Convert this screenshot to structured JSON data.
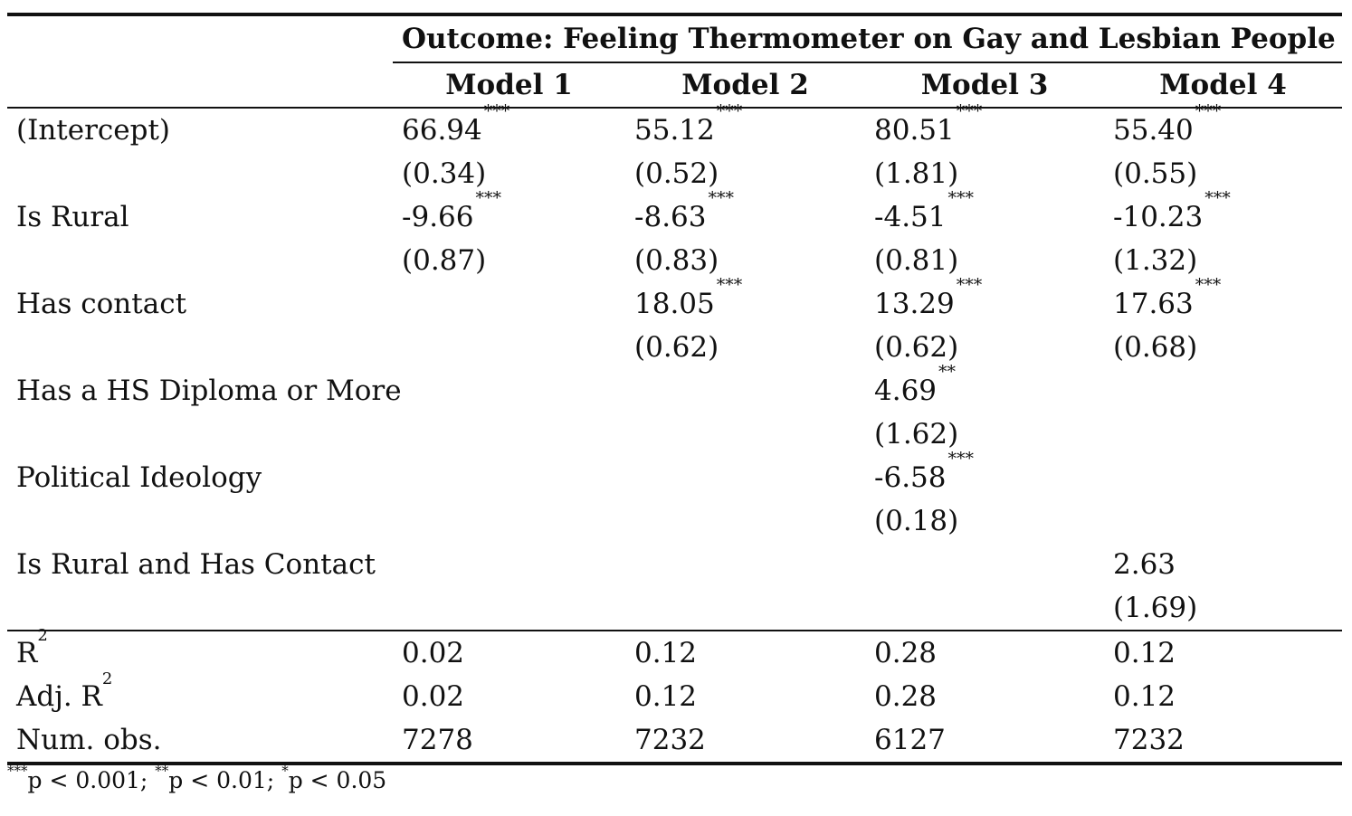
{
  "table": {
    "outcome_header": "Outcome: Feeling Thermometer on Gay and Lesbian People",
    "models": [
      "Model 1",
      "Model 2",
      "Model 3",
      "Model 4"
    ],
    "rows": [
      {
        "label": "(Intercept)",
        "coef": [
          {
            "v": "66.94",
            "s": "***"
          },
          {
            "v": "55.12",
            "s": "***"
          },
          {
            "v": "80.51",
            "s": "***"
          },
          {
            "v": "55.40",
            "s": "***"
          }
        ],
        "se": [
          "(0.34)",
          "(0.52)",
          "(1.81)",
          "(0.55)"
        ]
      },
      {
        "label": "Is Rural",
        "coef": [
          {
            "v": "-9.66",
            "s": "***"
          },
          {
            "v": "-8.63",
            "s": "***"
          },
          {
            "v": "-4.51",
            "s": "***"
          },
          {
            "v": "-10.23",
            "s": "***"
          }
        ],
        "se": [
          "(0.87)",
          "(0.83)",
          "(0.81)",
          "(1.32)"
        ]
      },
      {
        "label": "Has contact",
        "coef": [
          {
            "v": "",
            "s": ""
          },
          {
            "v": "18.05",
            "s": "***"
          },
          {
            "v": "13.29",
            "s": "***"
          },
          {
            "v": "17.63",
            "s": "***"
          }
        ],
        "se": [
          "",
          "(0.62)",
          "(0.62)",
          "(0.68)"
        ]
      },
      {
        "label": "Has a HS Diploma or More",
        "coef": [
          {
            "v": "",
            "s": ""
          },
          {
            "v": "",
            "s": ""
          },
          {
            "v": "4.69",
            "s": "**"
          },
          {
            "v": "",
            "s": ""
          }
        ],
        "se": [
          "",
          "",
          "(1.62)",
          ""
        ]
      },
      {
        "label": "Political Ideology",
        "coef": [
          {
            "v": "",
            "s": ""
          },
          {
            "v": "",
            "s": ""
          },
          {
            "v": "-6.58",
            "s": "***"
          },
          {
            "v": "",
            "s": ""
          }
        ],
        "se": [
          "",
          "",
          "(0.18)",
          ""
        ]
      },
      {
        "label": "Is Rural and Has Contact",
        "coef": [
          {
            "v": "",
            "s": ""
          },
          {
            "v": "",
            "s": ""
          },
          {
            "v": "",
            "s": ""
          },
          {
            "v": "2.63",
            "s": ""
          }
        ],
        "se": [
          "",
          "",
          "",
          "(1.69)"
        ]
      }
    ],
    "stats": [
      {
        "label": "R",
        "sup": "2",
        "values": [
          "0.02",
          "0.12",
          "0.28",
          "0.12"
        ]
      },
      {
        "label": "Adj. R",
        "sup": "2",
        "values": [
          "0.02",
          "0.12",
          "0.28",
          "0.12"
        ]
      },
      {
        "label": "Num. obs.",
        "sup": "",
        "values": [
          "7278",
          "7232",
          "6127",
          "7232"
        ]
      }
    ],
    "footnote": [
      {
        "stars": "***",
        "text": "p < 0.001; "
      },
      {
        "stars": "**",
        "text": "p < 0.01; "
      },
      {
        "stars": "*",
        "text": "p < 0.05"
      }
    ]
  }
}
